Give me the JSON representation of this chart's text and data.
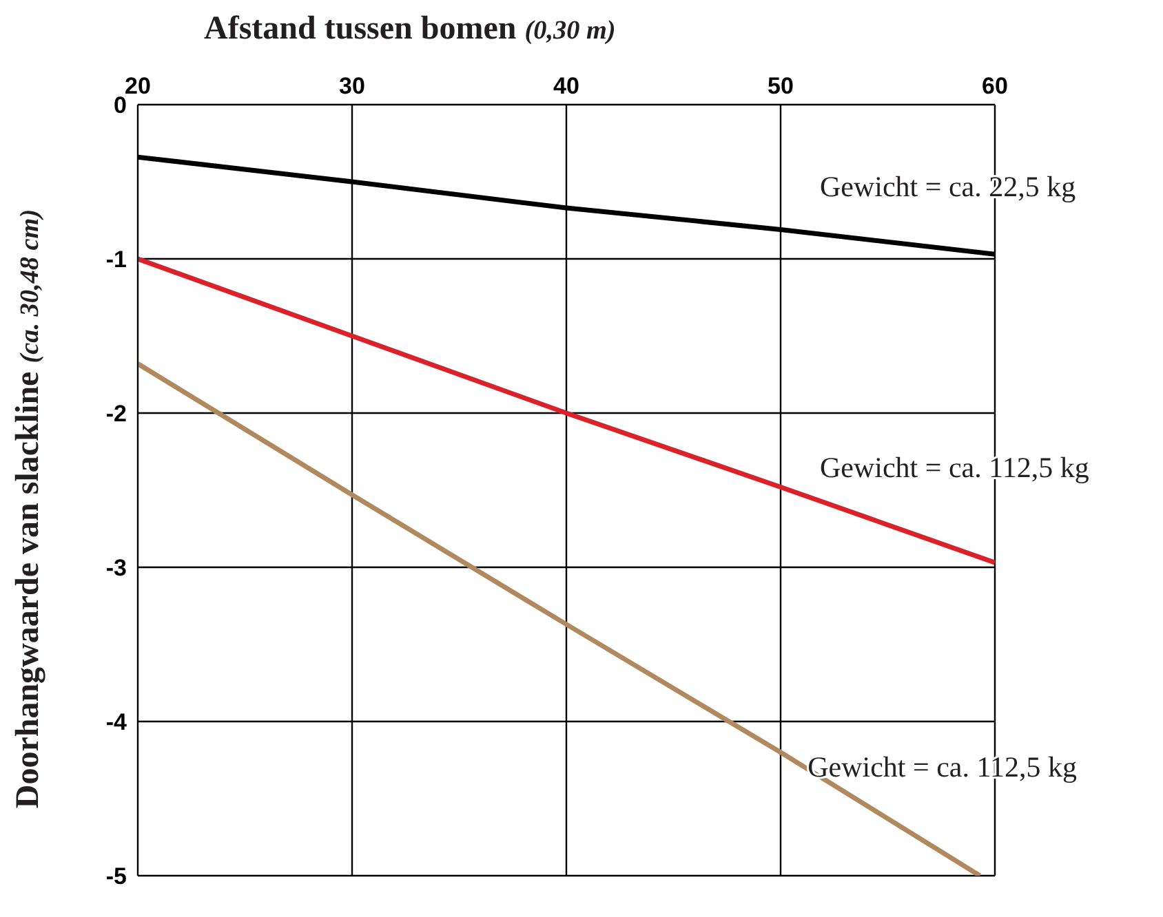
{
  "chart_data": {
    "type": "line",
    "xlabel": "Afstand tussen bomen (0,30 m)",
    "ylabel": "Doorhangwaarde van slackline (ca. 30,48 cm)",
    "series": [
      {
        "color": "#000000",
        "x": [
          20,
          30,
          40,
          50,
          60
        ],
        "values": [
          -0.34,
          -0.5,
          -0.67,
          -0.81,
          -0.97
        ]
      },
      {
        "color": "#d9222a",
        "x": [
          20,
          30,
          40,
          50,
          60
        ],
        "values": [
          -1,
          -1.5,
          -2,
          -2.48,
          -2.97
        ]
      },
      {
        "color": "#b08a5e",
        "x": [
          20,
          30,
          40,
          50,
          59.3
        ],
        "values": [
          -1.68,
          -2.53,
          -3.37,
          -4.2,
          -5
        ]
      }
    ],
    "xlim": [
      20,
      60
    ],
    "xticks": [
      20,
      30,
      40,
      50,
      60
    ],
    "ylim": [
      -5,
      0
    ],
    "yticks": [
      0,
      -1,
      -2,
      -3,
      -4,
      -5
    ],
    "grid": true,
    "marker": "none",
    "line_style": "solid",
    "annotations": [
      "Gewicht = ca. 22,5 kg",
      "Gewicht = ca. 112,5 kg",
      "Gewicht = ca. 112,5 kg"
    ]
  }
}
